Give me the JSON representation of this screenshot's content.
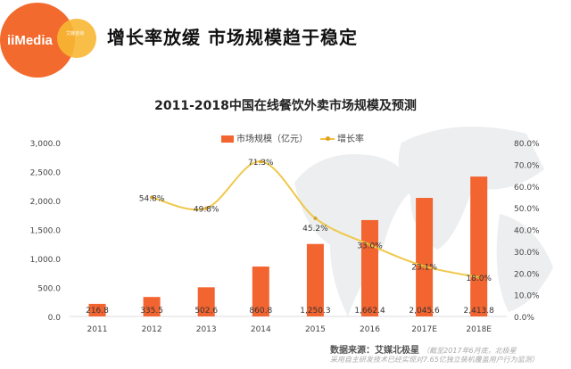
{
  "logo": {
    "text": "iiMedia",
    "sub": "艾媒咨询"
  },
  "headline": "增长率放缓 市场规模趋于稳定",
  "colors": {
    "bar": "#f26430",
    "line": "#f0c84a",
    "logo_orange": "#f26a2e",
    "logo_yellow": "#f7b733"
  },
  "chart_data": {
    "type": "bar",
    "title": "2011-2018中国在线餐饮外卖市场规模及预测",
    "categories": [
      "2011",
      "2012",
      "2013",
      "2014",
      "2015",
      "2016",
      "2017E",
      "2018E"
    ],
    "series": [
      {
        "name": "市场规模（亿元）",
        "type": "bar",
        "axis": "left",
        "values": [
          216.8,
          335.5,
          502.6,
          860.8,
          1250.3,
          1662.4,
          2045.6,
          2413.8
        ],
        "labels": [
          "216.8",
          "335.5",
          "502.6",
          "860.8",
          "1,250.3",
          "1,662.4",
          "2,045.6",
          "2,413.8"
        ]
      },
      {
        "name": "增长率",
        "type": "line",
        "axis": "right",
        "values": [
          null,
          54.8,
          49.8,
          71.3,
          45.2,
          33.0,
          23.1,
          18.0
        ],
        "labels": [
          "",
          "54.8%",
          "49.8%",
          "71.3%",
          "45.2%",
          "33.0%",
          "23.1%",
          "18.0%"
        ]
      }
    ],
    "ylim": [
      0,
      3000
    ],
    "y2lim": [
      0,
      80
    ],
    "yticks": [
      "0.0",
      "500.0",
      "1,000.0",
      "1,500.0",
      "2,000.0",
      "2,500.0",
      "3,000.0"
    ],
    "y2ticks": [
      "0.0%",
      "10.0%",
      "20.0%",
      "30.0%",
      "40.0%",
      "50.0%",
      "60.0%",
      "70.0%",
      "80.0%"
    ],
    "legend": "top-center",
    "grid": false
  },
  "source": {
    "label": "数据来源：艾媒北极星",
    "note1": "（截至2017年6月底，北极星",
    "note2": "采用自主研发技术已经实现对7.65亿独立装机覆盖用户行为监测）"
  }
}
